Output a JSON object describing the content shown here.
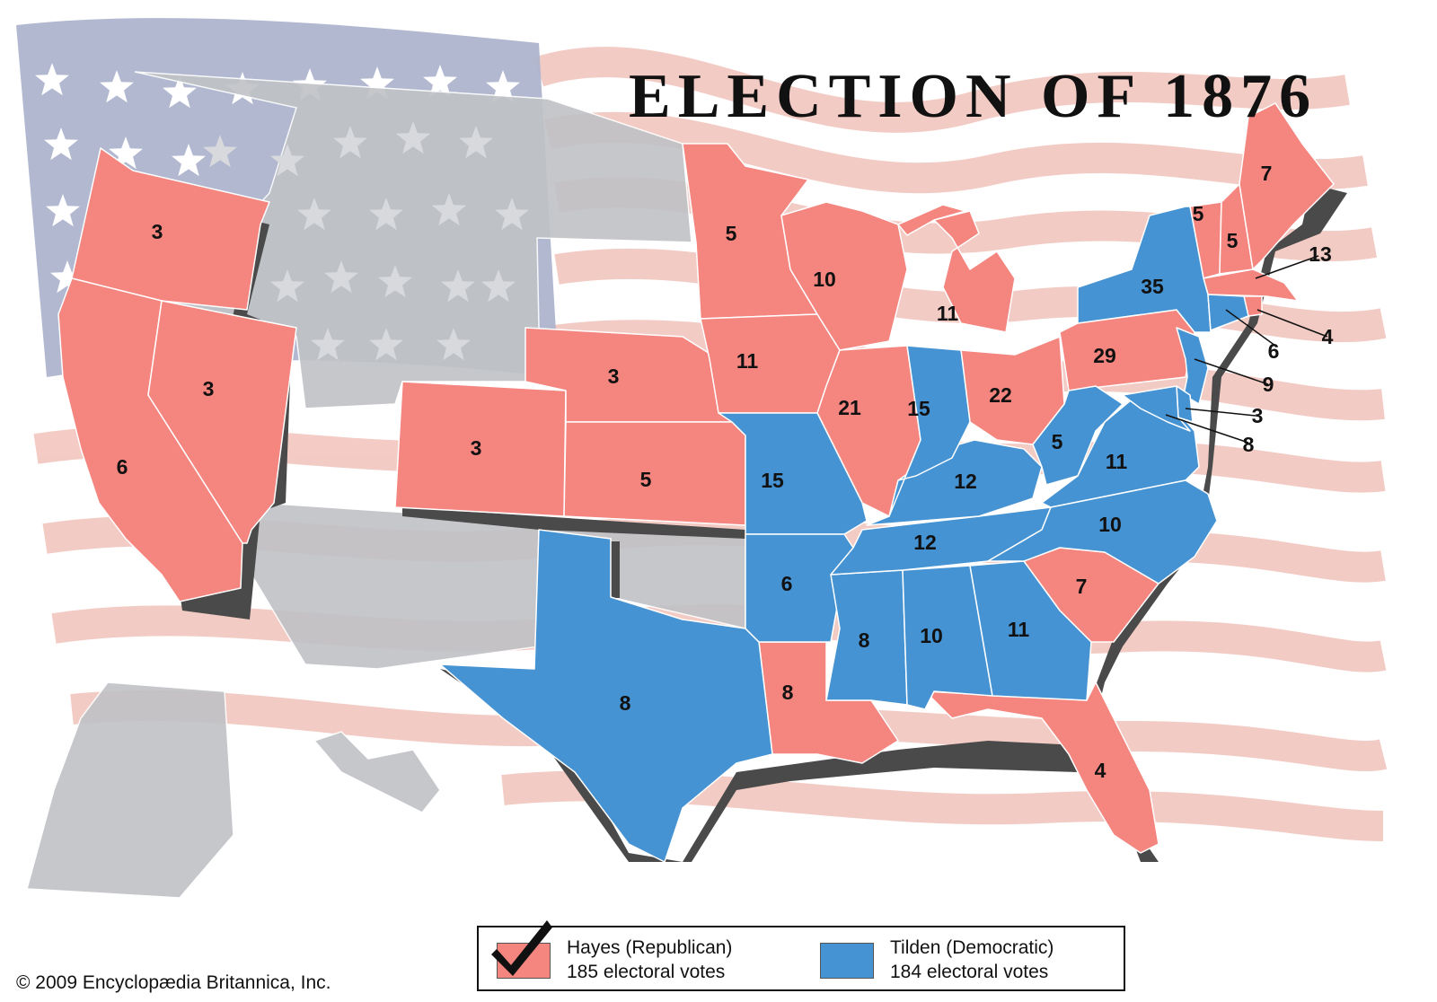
{
  "title": "ELECTION OF 1876",
  "copyright": "© 2009 Encyclopædia Britannica, Inc.",
  "colors": {
    "republican": "#f4857f",
    "democratic": "#4593d2",
    "territory": "#c9cacc",
    "flag_stripe": "#f3c9c2",
    "flag_union": "#adb4cd"
  },
  "legend": {
    "republican": {
      "candidate": "Hayes (Republican)",
      "votes": "185 electoral votes",
      "winner": true
    },
    "democratic": {
      "candidate": "Tilden (Democratic)",
      "votes": "184 electoral votes"
    }
  },
  "states": {
    "OR": {
      "party": "republican",
      "votes": "3"
    },
    "CA": {
      "party": "republican",
      "votes": "6"
    },
    "NV": {
      "party": "republican",
      "votes": "3"
    },
    "CO": {
      "party": "republican",
      "votes": "3"
    },
    "NE": {
      "party": "republican",
      "votes": "3"
    },
    "KS": {
      "party": "republican",
      "votes": "5"
    },
    "MN": {
      "party": "republican",
      "votes": "5"
    },
    "IA": {
      "party": "republican",
      "votes": "11"
    },
    "WI": {
      "party": "republican",
      "votes": "10"
    },
    "IL": {
      "party": "republican",
      "votes": "21"
    },
    "MI": {
      "party": "republican",
      "votes": "11"
    },
    "OH": {
      "party": "republican",
      "votes": "22"
    },
    "PA": {
      "party": "republican",
      "votes": "29"
    },
    "VT": {
      "party": "republican",
      "votes": "5"
    },
    "NH": {
      "party": "republican",
      "votes": "5"
    },
    "ME": {
      "party": "republican",
      "votes": "7"
    },
    "MA": {
      "party": "republican",
      "votes": "13"
    },
    "RI": {
      "party": "republican",
      "votes": "4"
    },
    "SC": {
      "party": "republican",
      "votes": "7"
    },
    "LA": {
      "party": "republican",
      "votes": "8"
    },
    "FL": {
      "party": "republican",
      "votes": "4"
    },
    "TX": {
      "party": "democratic",
      "votes": "8"
    },
    "MO": {
      "party": "democratic",
      "votes": "15"
    },
    "AR": {
      "party": "democratic",
      "votes": "6"
    },
    "MS": {
      "party": "democratic",
      "votes": "8"
    },
    "AL": {
      "party": "democratic",
      "votes": "10"
    },
    "GA": {
      "party": "democratic",
      "votes": "11"
    },
    "TN": {
      "party": "democratic",
      "votes": "12"
    },
    "KY": {
      "party": "democratic",
      "votes": "12"
    },
    "IN": {
      "party": "democratic",
      "votes": "15"
    },
    "WV": {
      "party": "democratic",
      "votes": "5"
    },
    "VA": {
      "party": "democratic",
      "votes": "11"
    },
    "NC": {
      "party": "democratic",
      "votes": "10"
    },
    "NY": {
      "party": "democratic",
      "votes": "35"
    },
    "NJ": {
      "party": "democratic",
      "votes": "9"
    },
    "CT": {
      "party": "democratic",
      "votes": "6"
    },
    "DE": {
      "party": "democratic",
      "votes": "3"
    },
    "MD": {
      "party": "democratic",
      "votes": "8"
    }
  }
}
